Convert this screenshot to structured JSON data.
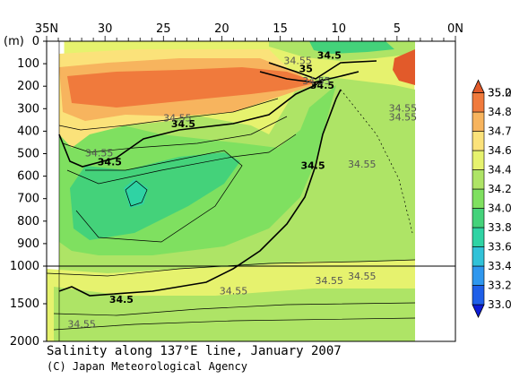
{
  "chart_data": {
    "type": "heatmap",
    "title": "Salinity along 137°E line, January 2007",
    "credit": "(C) Japan Meteorological Agency",
    "y_unit": "(m)",
    "x_ticks": [
      {
        "value": 35,
        "label": "35N"
      },
      {
        "value": 30,
        "label": "30"
      },
      {
        "value": 25,
        "label": "25"
      },
      {
        "value": 20,
        "label": "20"
      },
      {
        "value": 15,
        "label": "15"
      },
      {
        "value": 10,
        "label": "10"
      },
      {
        "value": 5,
        "label": "5"
      },
      {
        "value": 0,
        "label": "0N"
      }
    ],
    "y_ticks_upper": [
      0,
      100,
      200,
      300,
      400,
      500,
      600,
      700,
      800,
      900,
      1000
    ],
    "y_ticks_lower": [
      1500,
      2000
    ],
    "xlim": [
      35,
      0
    ],
    "ylim_upper": [
      0,
      1000
    ],
    "ylim_lower": [
      1000,
      2000
    ],
    "data_extent_lat": [
      33.5,
      3.5
    ],
    "colorbar": {
      "levels": [
        33.0,
        33.2,
        33.4,
        33.6,
        33.8,
        34.0,
        34.2,
        34.4,
        34.6,
        34.7,
        34.8,
        35.0,
        35.2
      ],
      "labels": [
        "33.0",
        "33.2",
        "33.4",
        "33.6",
        "33.8",
        "34.0",
        "34.2",
        "34.4",
        "34.6",
        "34.7",
        "34.8",
        "35.0",
        "35.2"
      ],
      "colors": [
        "#0d1bd6",
        "#1f5fe8",
        "#2f97ee",
        "#31c2d8",
        "#2fd3a4",
        "#44d27a",
        "#7fe060",
        "#aee466",
        "#e6f26e",
        "#fbe27a",
        "#f7b45e",
        "#f07a3c",
        "#e25a2a"
      ]
    },
    "contour_labels": [
      {
        "text": "34.5",
        "lat": 29.6,
        "depth": 540,
        "bold": true
      },
      {
        "text": "34.55",
        "lat": 30.5,
        "depth": 500,
        "bold": false
      },
      {
        "text": "34.5",
        "lat": 23.3,
        "depth": 370,
        "bold": true
      },
      {
        "text": "34.55",
        "lat": 23.8,
        "depth": 345,
        "bold": false
      },
      {
        "text": "34.5",
        "lat": 10.8,
        "depth": 65,
        "bold": true
      },
      {
        "text": "34.55",
        "lat": 13.5,
        "depth": 90,
        "bold": false
      },
      {
        "text": "35",
        "lat": 12.8,
        "depth": 125,
        "bold": true
      },
      {
        "text": "34.5",
        "lat": 11.4,
        "depth": 200,
        "bold": true
      },
      {
        "text": "34.55",
        "lat": 11.9,
        "depth": 180,
        "bold": false
      },
      {
        "text": "34.5",
        "lat": 12.2,
        "depth": 555,
        "bold": true
      },
      {
        "text": "34.55",
        "lat": 8.0,
        "depth": 550,
        "bold": false
      },
      {
        "text": "34.55",
        "lat": 4.5,
        "depth": 300,
        "bold": false
      },
      {
        "text": "34.55",
        "lat": 4.5,
        "depth": 340,
        "bold": false
      },
      {
        "text": "34.55",
        "lat": 8.0,
        "depth": 1140,
        "bold": false
      },
      {
        "text": "34.55",
        "lat": 10.8,
        "depth": 1200,
        "bold": false
      },
      {
        "text": "34.55",
        "lat": 19.0,
        "depth": 1340,
        "bold": false
      },
      {
        "text": "34.5",
        "lat": 28.6,
        "depth": 1450,
        "bold": true
      },
      {
        "text": "34.55",
        "lat": 32.0,
        "depth": 1780,
        "bold": false
      }
    ]
  }
}
